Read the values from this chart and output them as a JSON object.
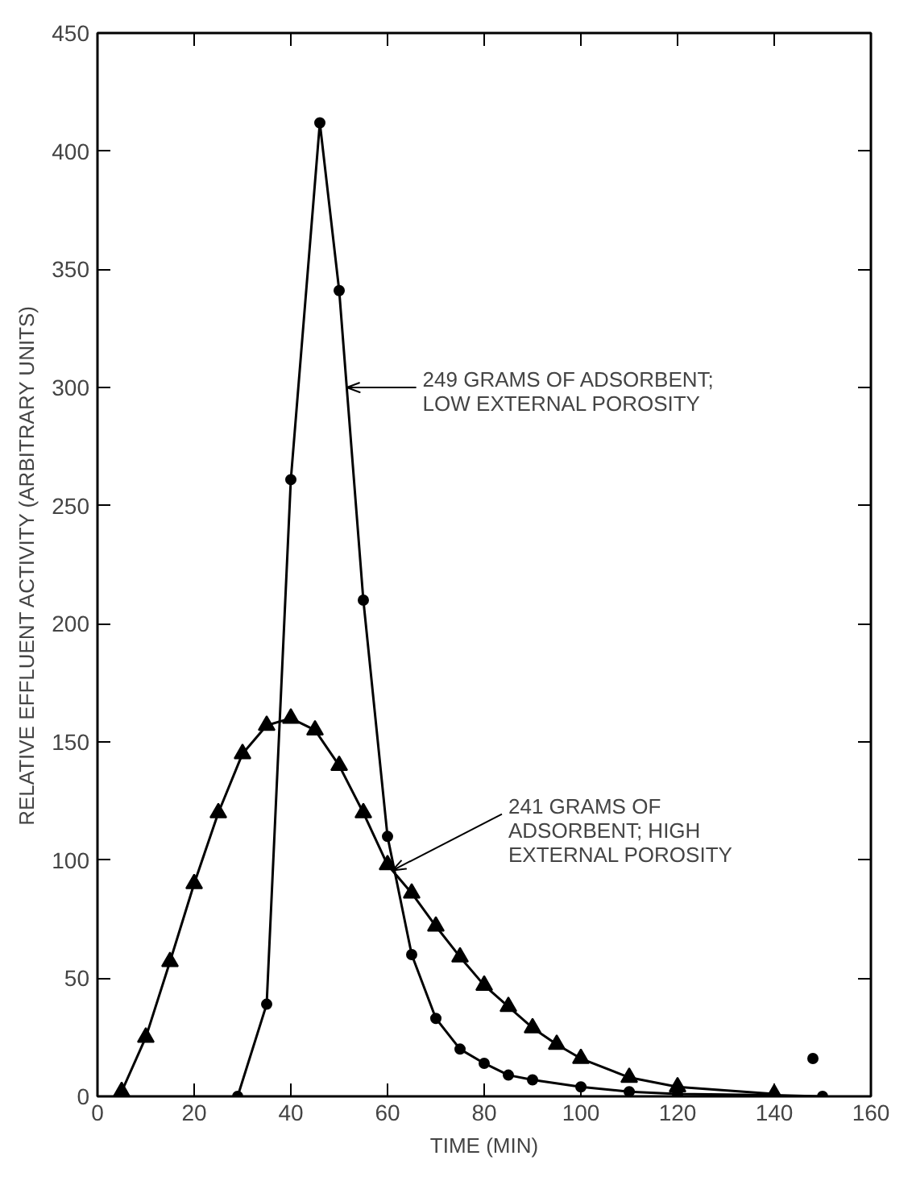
{
  "chart_data": {
    "type": "line",
    "xlabel": "TIME (MIN)",
    "ylabel": "RELATIVE EFFLUENT ACTIVITY (ARBITRARY UNITS)",
    "xlim": [
      0,
      160
    ],
    "xticks": [
      0,
      20,
      40,
      60,
      80,
      100,
      120,
      140,
      160
    ],
    "ylim": [
      0,
      450
    ],
    "yticks": [
      0,
      50,
      100,
      150,
      200,
      250,
      300,
      350,
      400,
      450
    ],
    "grid": false,
    "line_style": "solid",
    "series": [
      {
        "color": "#000000",
        "marker": "circle",
        "x": [
          29,
          35,
          40,
          46,
          50,
          55,
          60,
          65,
          70,
          75,
          80,
          85,
          90,
          100,
          110,
          120,
          140,
          150
        ],
        "values": [
          0,
          39,
          261,
          412,
          341,
          210,
          110,
          60,
          33,
          20,
          14,
          9,
          7,
          4,
          2,
          1,
          0.5,
          0
        ]
      },
      {
        "color": "#000000",
        "marker": "triangle",
        "x": [
          5,
          10,
          15,
          20,
          25,
          30,
          35,
          40,
          45,
          50,
          55,
          60,
          65,
          70,
          75,
          80,
          85,
          90,
          95,
          100,
          110,
          120,
          140
        ],
        "values": [
          2,
          25,
          57,
          90,
          120,
          145,
          157,
          160,
          155,
          140,
          120,
          98,
          86,
          72,
          59,
          47,
          38,
          29,
          22,
          16,
          8,
          4,
          1
        ]
      },
      {
        "type": "scatter",
        "color": "#000000",
        "marker": "circle",
        "x": [
          148
        ],
        "values": [
          16
        ]
      }
    ],
    "annotations": [
      {
        "text": "249 GRAMS OF ADSORBENT;\nLOW EXTERNAL POROSITY",
        "x": 51.6,
        "y": 300
      },
      {
        "text": "241 GRAMS OF\nADSORBENT; HIGH\nEXTERNAL POROSITY",
        "x": 61,
        "y": 95.6
      }
    ]
  }
}
